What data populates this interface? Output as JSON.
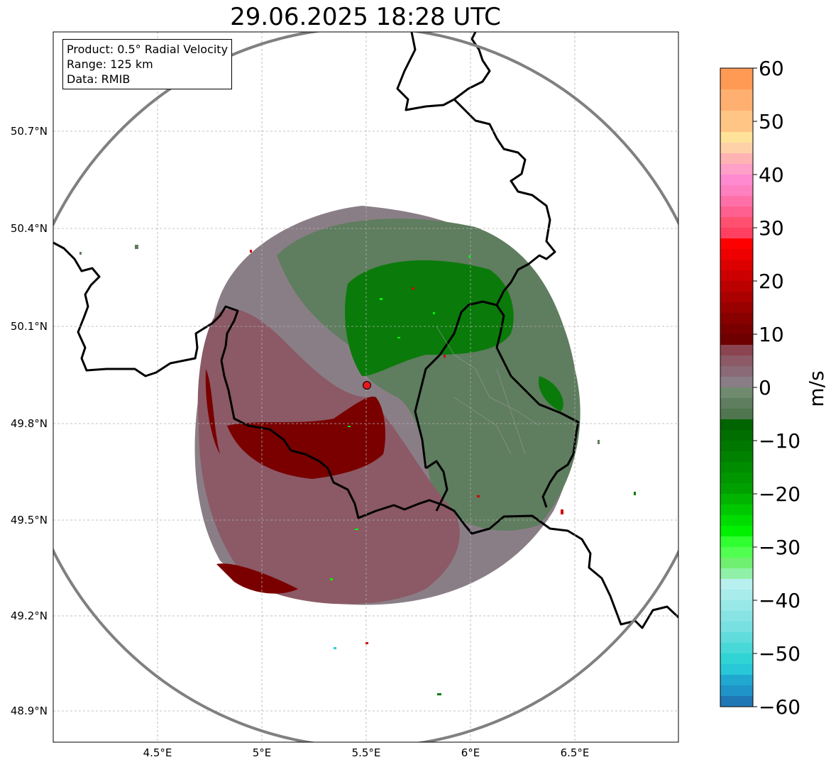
{
  "title": "29.06.2025 18:28 UTC",
  "info": {
    "product": "Product: 0.5° Radial Velocity",
    "range": "Range: 125 km",
    "data": "Data: RMIB"
  },
  "axes": {
    "x_ticks": [
      "4.5°E",
      "5°E",
      "5.5°E",
      "6°E",
      "6.5°E"
    ],
    "y_ticks": [
      "50.7°N",
      "50.4°N",
      "50.1°N",
      "49.8°N",
      "49.5°N",
      "49.2°N",
      "48.9°N"
    ],
    "lon_range": [
      4.0,
      7.0
    ],
    "lat_range": [
      48.8,
      51.0
    ],
    "grid": true
  },
  "radar_site": {
    "lon": 5.51,
    "lat": 49.91,
    "color": "#e31a1c"
  },
  "colorbar": {
    "unit": "m/s",
    "min": -60,
    "max": 60,
    "tick_labels": [
      "60",
      "50",
      "40",
      "30",
      "20",
      "10",
      "0",
      "−10",
      "−20",
      "−30",
      "−40",
      "−50",
      "−60"
    ]
  },
  "colors": {
    "outbound_strong": "#7a0000",
    "outbound_weak": "#8b5a66",
    "near_zero": "#8c7f86",
    "inbound_weak": "#5f7d5f",
    "inbound_strong": "#0a7a0a",
    "range_ring": "#808080",
    "border": "#000000"
  }
}
